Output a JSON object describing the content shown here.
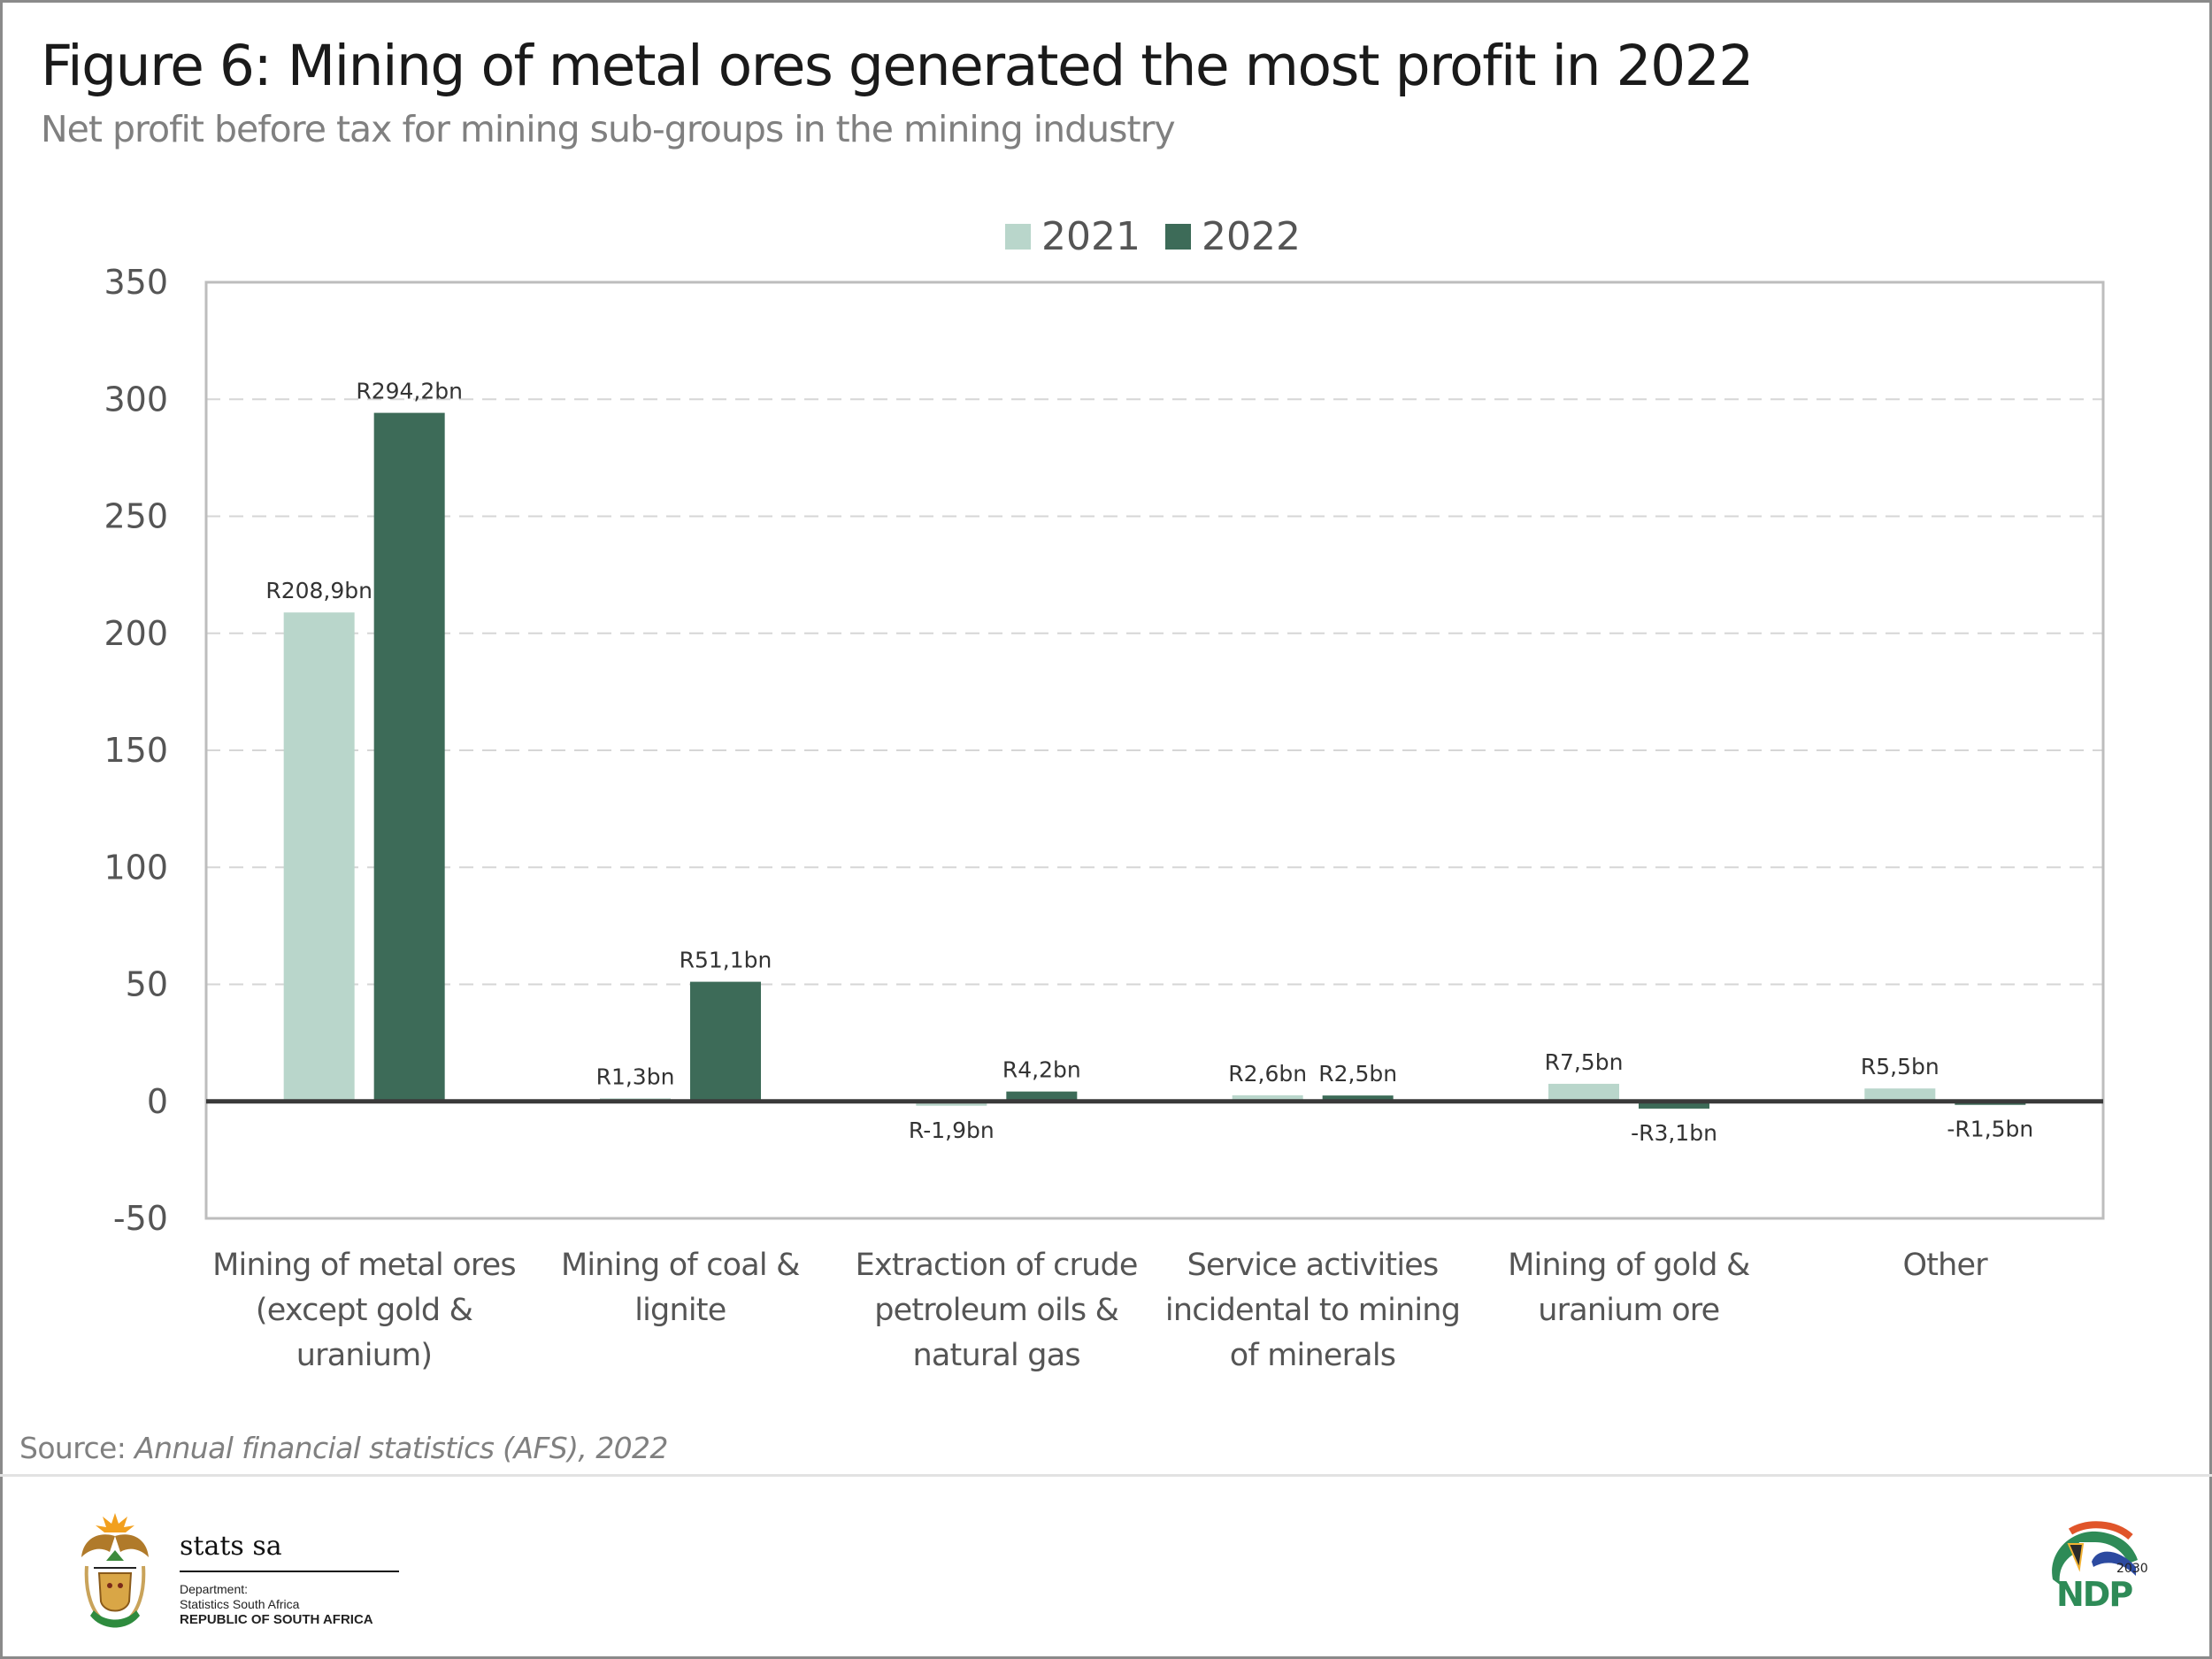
{
  "header": {
    "title": "Figure 6: Mining of metal ores generated the most profit in 2022",
    "subtitle": "Net profit before tax for mining sub-groups in the mining industry"
  },
  "legend": [
    {
      "label": "2021",
      "color": "#b9d6cb"
    },
    {
      "label": "2022",
      "color": "#3d6b58"
    }
  ],
  "chart_data": {
    "type": "bar",
    "title": "Figure 6: Mining of metal ores generated the most profit in 2022",
    "subtitle": "Net profit before tax for mining sub-groups in the mining industry",
    "xlabel": "",
    "ylabel": "",
    "ylim": [
      -50,
      350
    ],
    "yticks": [
      350,
      300,
      250,
      200,
      150,
      100,
      50,
      0,
      -50
    ],
    "grid": true,
    "legend_position": "top-center",
    "categories": [
      [
        "Mining of metal ores",
        "(except gold &",
        "uranium)"
      ],
      [
        "Mining of coal &",
        "lignite"
      ],
      [
        "Extraction of crude",
        "petroleum oils &",
        "natural gas"
      ],
      [
        "Service activities",
        "incidental to mining",
        "of minerals"
      ],
      [
        "Mining of gold &",
        "uranium ore"
      ],
      [
        "Other"
      ]
    ],
    "series": [
      {
        "name": "2021",
        "color": "#b9d6cb",
        "values": [
          208.9,
          1.3,
          -1.9,
          2.6,
          7.5,
          5.5
        ],
        "labels": [
          "R208,9bn",
          "R1,3bn",
          "R-1,9bn",
          "R2,6bn",
          "R7,5bn",
          "R5,5bn"
        ]
      },
      {
        "name": "2022",
        "color": "#3d6b58",
        "values": [
          294.2,
          51.1,
          4.2,
          2.5,
          -3.1,
          -1.5
        ],
        "labels": [
          "R294,2bn",
          "R51,1bn",
          "R4,2bn",
          "R2,5bn",
          "-R3,1bn",
          "-R1,5bn"
        ]
      }
    ]
  },
  "footer": {
    "source_prefix": "Source: ",
    "source_title": "Annual financial statistics (AFS), 2022",
    "org_name": "stats sa",
    "org_line1": "Department:",
    "org_line2": "Statistics South Africa",
    "org_line3": "REPUBLIC OF SOUTH AFRICA",
    "ndp_year": "2030",
    "ndp_text": "NDP"
  }
}
